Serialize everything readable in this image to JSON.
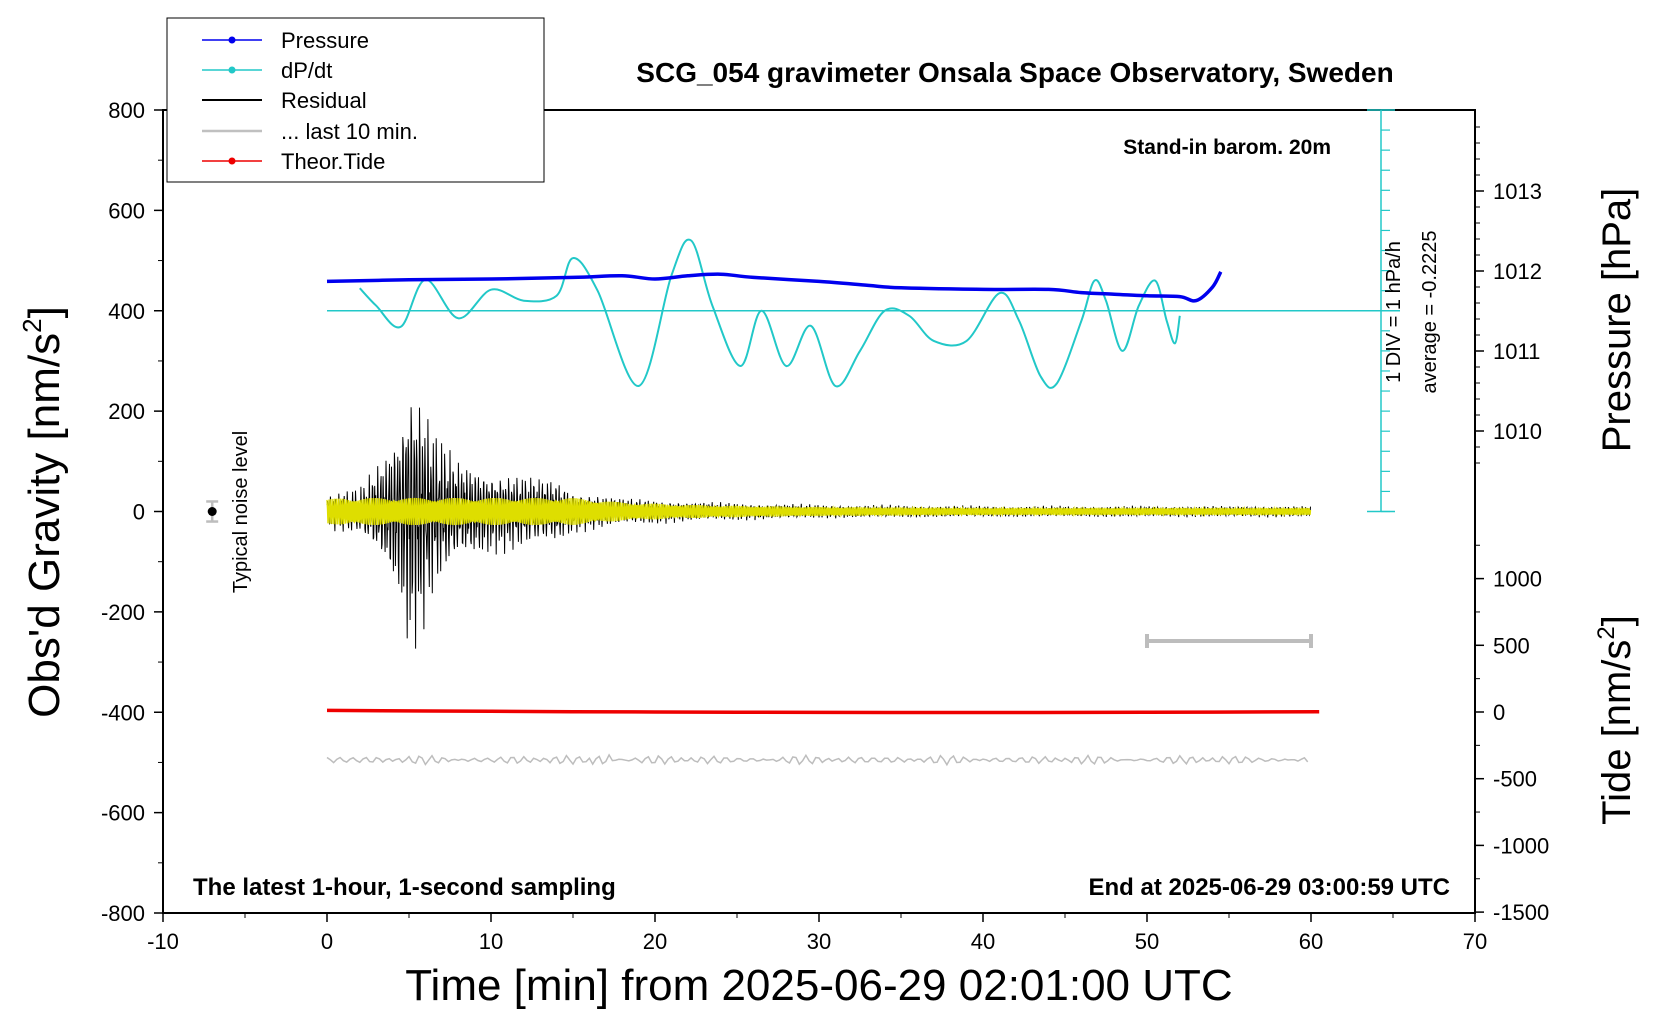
{
  "chart_data": {
    "type": "line",
    "title": "SCG_054 gravimeter Onsala Space Observatory, Sweden",
    "xlabel": "Time [min] from 2025-06-29 02:01:00 UTC",
    "ylabel_main": "Obs'd Gravity [nm/s",
    "ylabel_main_sup": "2",
    "ylabel_main_end": "]",
    "ylabel_pressure": "Pressure [hPa]",
    "ylabel_tide": "Tide [nm/s",
    "ylabel_tide_sup": "2",
    "ylabel_tide_end": "]",
    "xlim": [
      -10,
      70
    ],
    "ylim": [
      -800,
      800
    ],
    "x_ticks": [
      "-10",
      "0",
      "10",
      "20",
      "30",
      "40",
      "50",
      "60",
      "70"
    ],
    "y_ticks": [
      "800",
      "600",
      "400",
      "200",
      "0",
      "-200",
      "-400",
      "-600",
      "-800"
    ],
    "pressure_ticks": [
      "1013",
      "1012",
      "1011",
      "1010"
    ],
    "tide_ticks": [
      "1000",
      "500",
      "0",
      "-500",
      "-1000",
      "-1500"
    ],
    "legend": [
      {
        "label": "Pressure",
        "color": "#0000ee"
      },
      {
        "label": "dP/dt",
        "color": "#22c8c8"
      },
      {
        "label": "Residual",
        "color": "#000000"
      },
      {
        "label": "... last 10 min.",
        "color": "#c0c0c0"
      },
      {
        "label": "Theor.Tide",
        "color": "#ee0000"
      }
    ],
    "legend_position": "top-left",
    "annotations": {
      "stand_in": "Stand-in barom. 20m",
      "div_note": "1 DIV = 1 hPa/h",
      "average_note": "average = -0.2225",
      "noise_label": "Typical noise level",
      "bottom_left": "The latest 1-hour, 1-second sampling",
      "bottom_right": "End at 2025-06-29 03:00:59 UTC"
    },
    "series": [
      {
        "name": "Pressure",
        "unit": "hPa",
        "x": [
          0,
          5,
          10,
          15,
          18,
          20,
          22,
          24,
          26,
          30,
          33,
          35,
          40,
          44,
          46,
          48,
          50,
          52,
          53,
          54,
          54.5
        ],
        "y": [
          1011.87,
          1011.89,
          1011.9,
          1011.92,
          1011.94,
          1011.9,
          1011.94,
          1011.96,
          1011.92,
          1011.87,
          1011.82,
          1011.79,
          1011.77,
          1011.77,
          1011.73,
          1011.71,
          1011.69,
          1011.68,
          1011.63,
          1011.8,
          1011.99
        ]
      },
      {
        "name": "dP/dt",
        "unit": "gravity-axis plot position",
        "x": [
          2,
          3,
          4.5,
          6,
          8,
          10,
          12,
          14,
          15,
          16.5,
          19,
          21,
          22.2,
          23.5,
          25.2,
          26.5,
          28,
          29.5,
          31,
          32.5,
          34,
          35.5,
          37,
          39,
          41,
          42.2,
          43.5,
          44.5,
          46,
          46.8,
          47.5,
          48.5,
          49.5,
          50.5,
          51.2,
          51.7,
          52
        ],
        "y": [
          445,
          410,
          368,
          462,
          385,
          442,
          420,
          430,
          505,
          440,
          250,
          470,
          540,
          410,
          290,
          400,
          290,
          370,
          250,
          320,
          400,
          390,
          340,
          340,
          435,
          380,
          270,
          255,
          380,
          460,
          420,
          320,
          410,
          460,
          380,
          335,
          390
        ]
      },
      {
        "name": "Residual",
        "unit": "nm/s2",
        "envelope_x": [
          0,
          2,
          3.5,
          4.5,
          5,
          5.8,
          6.5,
          8,
          10,
          12,
          14,
          15,
          18,
          22,
          26,
          30,
          40,
          50,
          60
        ],
        "envelope_y": [
          40,
          50,
          120,
          200,
          310,
          260,
          180,
          110,
          90,
          80,
          70,
          45,
          30,
          22,
          18,
          15,
          12,
          12,
          12
        ]
      },
      {
        "name": "... last 10 min.",
        "unit": "plot offset -495 nm/s2",
        "x": [
          0,
          60
        ],
        "y": [
          -495,
          -495
        ]
      },
      {
        "name": "Theor.Tide",
        "unit": "nm/s2",
        "x": [
          0,
          10,
          20,
          30,
          40,
          50,
          60.5
        ],
        "y": [
          12,
          5,
          0,
          -3,
          -4,
          -2,
          2
        ]
      }
    ],
    "time_scale_bar_min": [
      50,
      60
    ],
    "noise_bar": {
      "x": -7,
      "y": 0,
      "err": 20
    }
  }
}
